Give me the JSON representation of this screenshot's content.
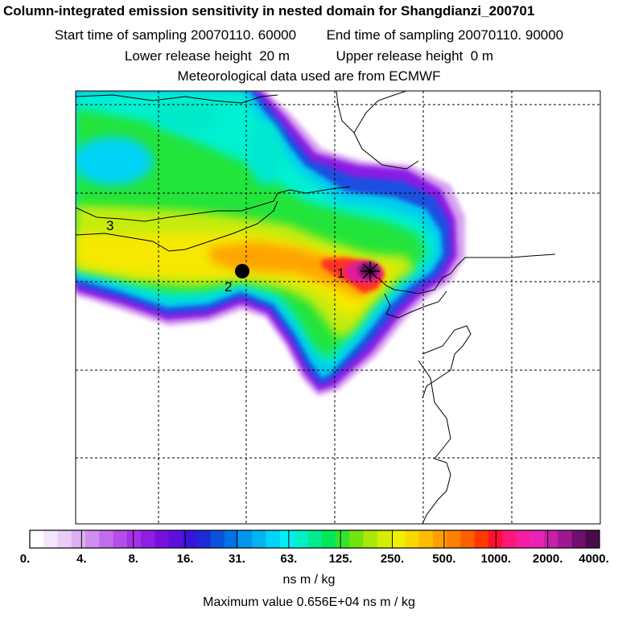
{
  "header": {
    "title": "Column-integrated emission sensitivity in nested domain for Shangdianzi_200701",
    "start_label": "Start time of sampling",
    "start_value": "20070110. 60000",
    "end_label": "End time of sampling",
    "end_value": "20070110. 90000",
    "lower_label": "Lower release height",
    "lower_value": "20 m",
    "upper_label": "Upper release height",
    "upper_value": "0 m",
    "met_source": "Meteorological data used are from ECMWF"
  },
  "map": {
    "markers": [
      {
        "label": "1",
        "kind": "receptor-star"
      },
      {
        "label": "2",
        "kind": "dot"
      },
      {
        "label": "3",
        "kind": "contour-label"
      }
    ]
  },
  "legend": {
    "tick_labels": [
      "0.",
      "4.",
      "8.",
      "16.",
      "31.",
      "63.",
      "125.",
      "250.",
      "500.",
      "1000.",
      "2000.",
      "4000."
    ],
    "units": "ns m / kg",
    "colors": [
      "#ffffff",
      "#f4e6fb",
      "#e9cdf7",
      "#dcb0f2",
      "#cf8ef0",
      "#c26ced",
      "#b54de9",
      "#a431e6",
      "#8f1de2",
      "#7510de",
      "#5b10dc",
      "#3a14d9",
      "#1e2ad6",
      "#0a52da",
      "#0074e4",
      "#0096ee",
      "#00b4f4",
      "#00d4f8",
      "#00f0f6",
      "#00f0c8",
      "#00ec90",
      "#00e85a",
      "#30e62a",
      "#72e410",
      "#a8e80a",
      "#d4ee06",
      "#f0f000",
      "#fad800",
      "#ffbc00",
      "#ffa000",
      "#ff8000",
      "#ff5e00",
      "#ff3800",
      "#ff1030",
      "#ff1878",
      "#f51ea0",
      "#e824b8",
      "#c81ea8",
      "#a01890",
      "#70106c",
      "#4a0c48"
    ]
  },
  "max_value_line": "Maximum value  0.656E+04 ns m / kg"
}
